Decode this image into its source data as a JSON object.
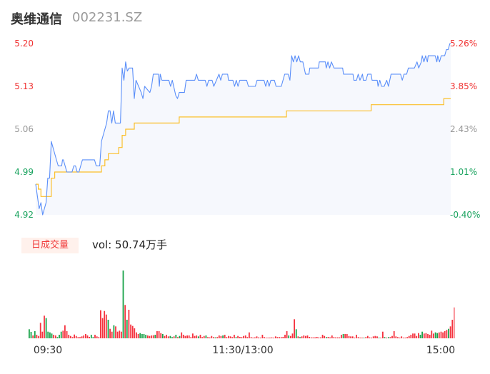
{
  "header": {
    "name": "奥维通信",
    "code": "002231.SZ"
  },
  "volume_panel": {
    "badge": "日成交量",
    "vol_label": "vol: 50.74万手"
  },
  "colors": {
    "price_line": "#5b8ff9",
    "avg_line": "#fbbf2a",
    "up": "#f5333f",
    "down": "#1aa34a",
    "area_fill": "#f6f8fd",
    "axis_red": "#f03333",
    "axis_gray": "#999999",
    "axis_green": "#1aa35f"
  },
  "chart_data": [
    {
      "type": "line",
      "title": "",
      "prev_close": 4.94,
      "ylim": [
        4.92,
        5.2
      ],
      "xlim_minutes": [
        0,
        240
      ],
      "left_ticks": [
        {
          "label": "5.20",
          "value": 5.2,
          "tone": "red"
        },
        {
          "label": "5.13",
          "value": 5.13,
          "tone": "red"
        },
        {
          "label": "5.06",
          "value": 5.06,
          "tone": "gray"
        },
        {
          "label": "4.99",
          "value": 4.99,
          "tone": "green"
        },
        {
          "label": "4.92",
          "value": 4.92,
          "tone": "green"
        }
      ],
      "right_ticks": [
        {
          "label": "5.26%",
          "value": 5.2,
          "tone": "red"
        },
        {
          "label": "3.85%",
          "value": 5.13,
          "tone": "red"
        },
        {
          "label": "2.43%",
          "value": 5.06,
          "tone": "gray"
        },
        {
          "label": "1.01%",
          "value": 4.99,
          "tone": "green"
        },
        {
          "label": "-0.40%",
          "value": 4.92,
          "tone": "green"
        }
      ],
      "price": {
        "minute": [
          0,
          2,
          3,
          4,
          6,
          7,
          8,
          9,
          12,
          13,
          15,
          15.5,
          16,
          18,
          21,
          22,
          23,
          24,
          25,
          27,
          34,
          35,
          37,
          38,
          41,
          42,
          43,
          44,
          45,
          46,
          49,
          50,
          51,
          52,
          53,
          54,
          56,
          57,
          58,
          61,
          62,
          63,
          66,
          67,
          68,
          71,
          71.5,
          72,
          73,
          77,
          78,
          79,
          81,
          82,
          83,
          86,
          87,
          92,
          93,
          94,
          98,
          99,
          100,
          102,
          103,
          104.5,
          106,
          107,
          108,
          111,
          111.5,
          114,
          115,
          116,
          117,
          118,
          122,
          123,
          127,
          128,
          132,
          133,
          134,
          135,
          136,
          138,
          139,
          142,
          144,
          146,
          147,
          148,
          149,
          150,
          151,
          152,
          153,
          154.5,
          156,
          158,
          158.5,
          163.5,
          164,
          167.5,
          168,
          169,
          170,
          171,
          172.5,
          177.5,
          178,
          183.5,
          184,
          185.5,
          186.5,
          187.5,
          189,
          189.5,
          191,
          192,
          194,
          194.5,
          197.5,
          198,
          199,
          200,
          201.5,
          203,
          204,
          205.5,
          211,
          212,
          213,
          214.5,
          215.5,
          219,
          220.5,
          221.5,
          223,
          223.5,
          224.5,
          225.5,
          226.5,
          227,
          231,
          232,
          232.5,
          233.5,
          234.5,
          236.5,
          237.5,
          238.5,
          239.5,
          240
        ],
        "value": [
          4.97,
          4.93,
          4.94,
          4.92,
          4.94,
          4.98,
          4.98,
          5.04,
          5.01,
          5.0,
          5.0,
          5.01,
          5.01,
          4.99,
          4.99,
          5.0,
          5.0,
          4.99,
          4.99,
          5.01,
          5.01,
          5.0,
          5.0,
          5.04,
          5.07,
          5.09,
          5.09,
          5.07,
          5.09,
          5.07,
          5.07,
          5.16,
          5.14,
          5.17,
          5.155,
          5.16,
          5.16,
          5.11,
          5.14,
          5.12,
          5.11,
          5.13,
          5.12,
          5.13,
          5.15,
          5.15,
          5.13,
          5.15,
          5.14,
          5.14,
          5.13,
          5.14,
          5.115,
          5.11,
          5.12,
          5.12,
          5.14,
          5.14,
          5.15,
          5.14,
          5.14,
          5.13,
          5.14,
          5.14,
          5.13,
          5.14,
          5.15,
          5.14,
          5.15,
          5.15,
          5.14,
          5.14,
          5.13,
          5.14,
          5.13,
          5.14,
          5.14,
          5.13,
          5.13,
          5.14,
          5.14,
          5.13,
          5.14,
          5.13,
          5.14,
          5.14,
          5.13,
          5.13,
          5.15,
          5.15,
          5.14,
          5.18,
          5.17,
          5.18,
          5.17,
          5.18,
          5.17,
          5.17,
          5.15,
          5.15,
          5.16,
          5.16,
          5.17,
          5.17,
          5.16,
          5.17,
          5.16,
          5.17,
          5.16,
          5.16,
          5.15,
          5.15,
          5.14,
          5.14,
          5.15,
          5.14,
          5.15,
          5.14,
          5.14,
          5.15,
          5.15,
          5.14,
          5.14,
          5.13,
          5.14,
          5.13,
          5.13,
          5.14,
          5.13,
          5.15,
          5.15,
          5.14,
          5.15,
          5.15,
          5.16,
          5.16,
          5.17,
          5.16,
          5.17,
          5.18,
          5.17,
          5.18,
          5.17,
          5.18,
          5.18,
          5.17,
          5.18,
          5.17,
          5.18,
          5.18,
          5.19,
          5.19,
          5.2,
          5.2
        ]
      },
      "average": {
        "minute": [
          0,
          1.5,
          3,
          9,
          11,
          38,
          40,
          42,
          48,
          50,
          52,
          57,
          83,
          145,
          194,
          236,
          240
        ],
        "value": [
          4.97,
          4.962,
          4.95,
          4.98,
          4.99,
          5.0,
          5.01,
          5.02,
          5.03,
          5.05,
          5.06,
          5.07,
          5.08,
          5.09,
          5.1,
          5.11,
          5.11
        ]
      }
    },
    {
      "type": "bar",
      "title": "",
      "x_ticks": [
        "09:30",
        "11:30/13:00",
        "15:00"
      ],
      "unit": "手",
      "volumes": [
        3420,
        2430,
        1080,
        2700,
        1350,
        900,
        5850,
        2520,
        8550,
        7650,
        2520,
        2250,
        1800,
        1350,
        1080,
        450,
        1350,
        2520,
        2880,
        4950,
        2700,
        1350,
        900,
        450,
        1440,
        900,
        450,
        450,
        720,
        1080,
        1620,
        1080,
        540,
        1350,
        450,
        1350,
        720,
        450,
        10620,
        7650,
        10350,
        9000,
        7020,
        3600,
        2520,
        4950,
        4500,
        2520,
        2880,
        2520,
        25650,
        12600,
        7020,
        10800,
        5220,
        4680,
        3780,
        2250,
        1620,
        1980,
        1620,
        1620,
        1350,
        1080,
        900,
        1080,
        1170,
        1350,
        2700,
        2700,
        1980,
        1620,
        900,
        1350,
        720,
        900,
        450,
        720,
        1350,
        450,
        900,
        2250,
        1350,
        900,
        1080,
        1080,
        450,
        1800,
        900,
        1080,
        720,
        1350,
        450,
        900,
        1080,
        450,
        360,
        900,
        450,
        360,
        450,
        1080,
        900,
        1080,
        1350,
        450,
        900,
        720,
        450,
        1350,
        450,
        900,
        540,
        450,
        900,
        1080,
        450,
        2250,
        450,
        270,
        360,
        720,
        360,
        270,
        1350,
        450,
        270,
        270,
        270,
        360,
        270,
        720,
        450,
        450,
        450,
        540,
        1350,
        2700,
        1080,
        900,
        1800,
        7200,
        3420,
        720,
        450,
        720,
        1080,
        900,
        1080,
        540,
        360,
        360,
        360,
        540,
        360,
        360,
        1350,
        900,
        450,
        540,
        360,
        1080,
        450,
        360,
        360,
        360,
        1350,
        1620,
        1620,
        1620,
        900,
        720,
        720,
        270,
        1350,
        450,
        270,
        270,
        270,
        450,
        900,
        360,
        270,
        720,
        900,
        720,
        270,
        270,
        2520,
        450,
        270,
        450,
        450,
        900,
        2700,
        720,
        450,
        270,
        720,
        270,
        270,
        450,
        900,
        1350,
        1800,
        1800,
        900,
        1980,
        1350,
        2520,
        1800,
        1980,
        1620,
        1350,
        2880,
        1800,
        2250,
        1980,
        2250,
        2520,
        2250,
        2700,
        3150,
        3600,
        4500,
        7020,
        11700
      ],
      "directions": "dduduuuuudddduuddduuuuuuuuuuuuuuudduuuuuuuduuduuuududuuuuuudddduuuuduuuduuuddudu duuuuuuuuuduuuduuuuduuuduuuuuuduuuuuuuuuuuuuuuuuuuuuuuuuuuduuududuuuuuuuuuuuuuduuuuuuuuduuuuuuuuuuduuuuuuuduududuuuuuuuuuuuuuuuudduuuuuudduuuuud"
    }
  ]
}
